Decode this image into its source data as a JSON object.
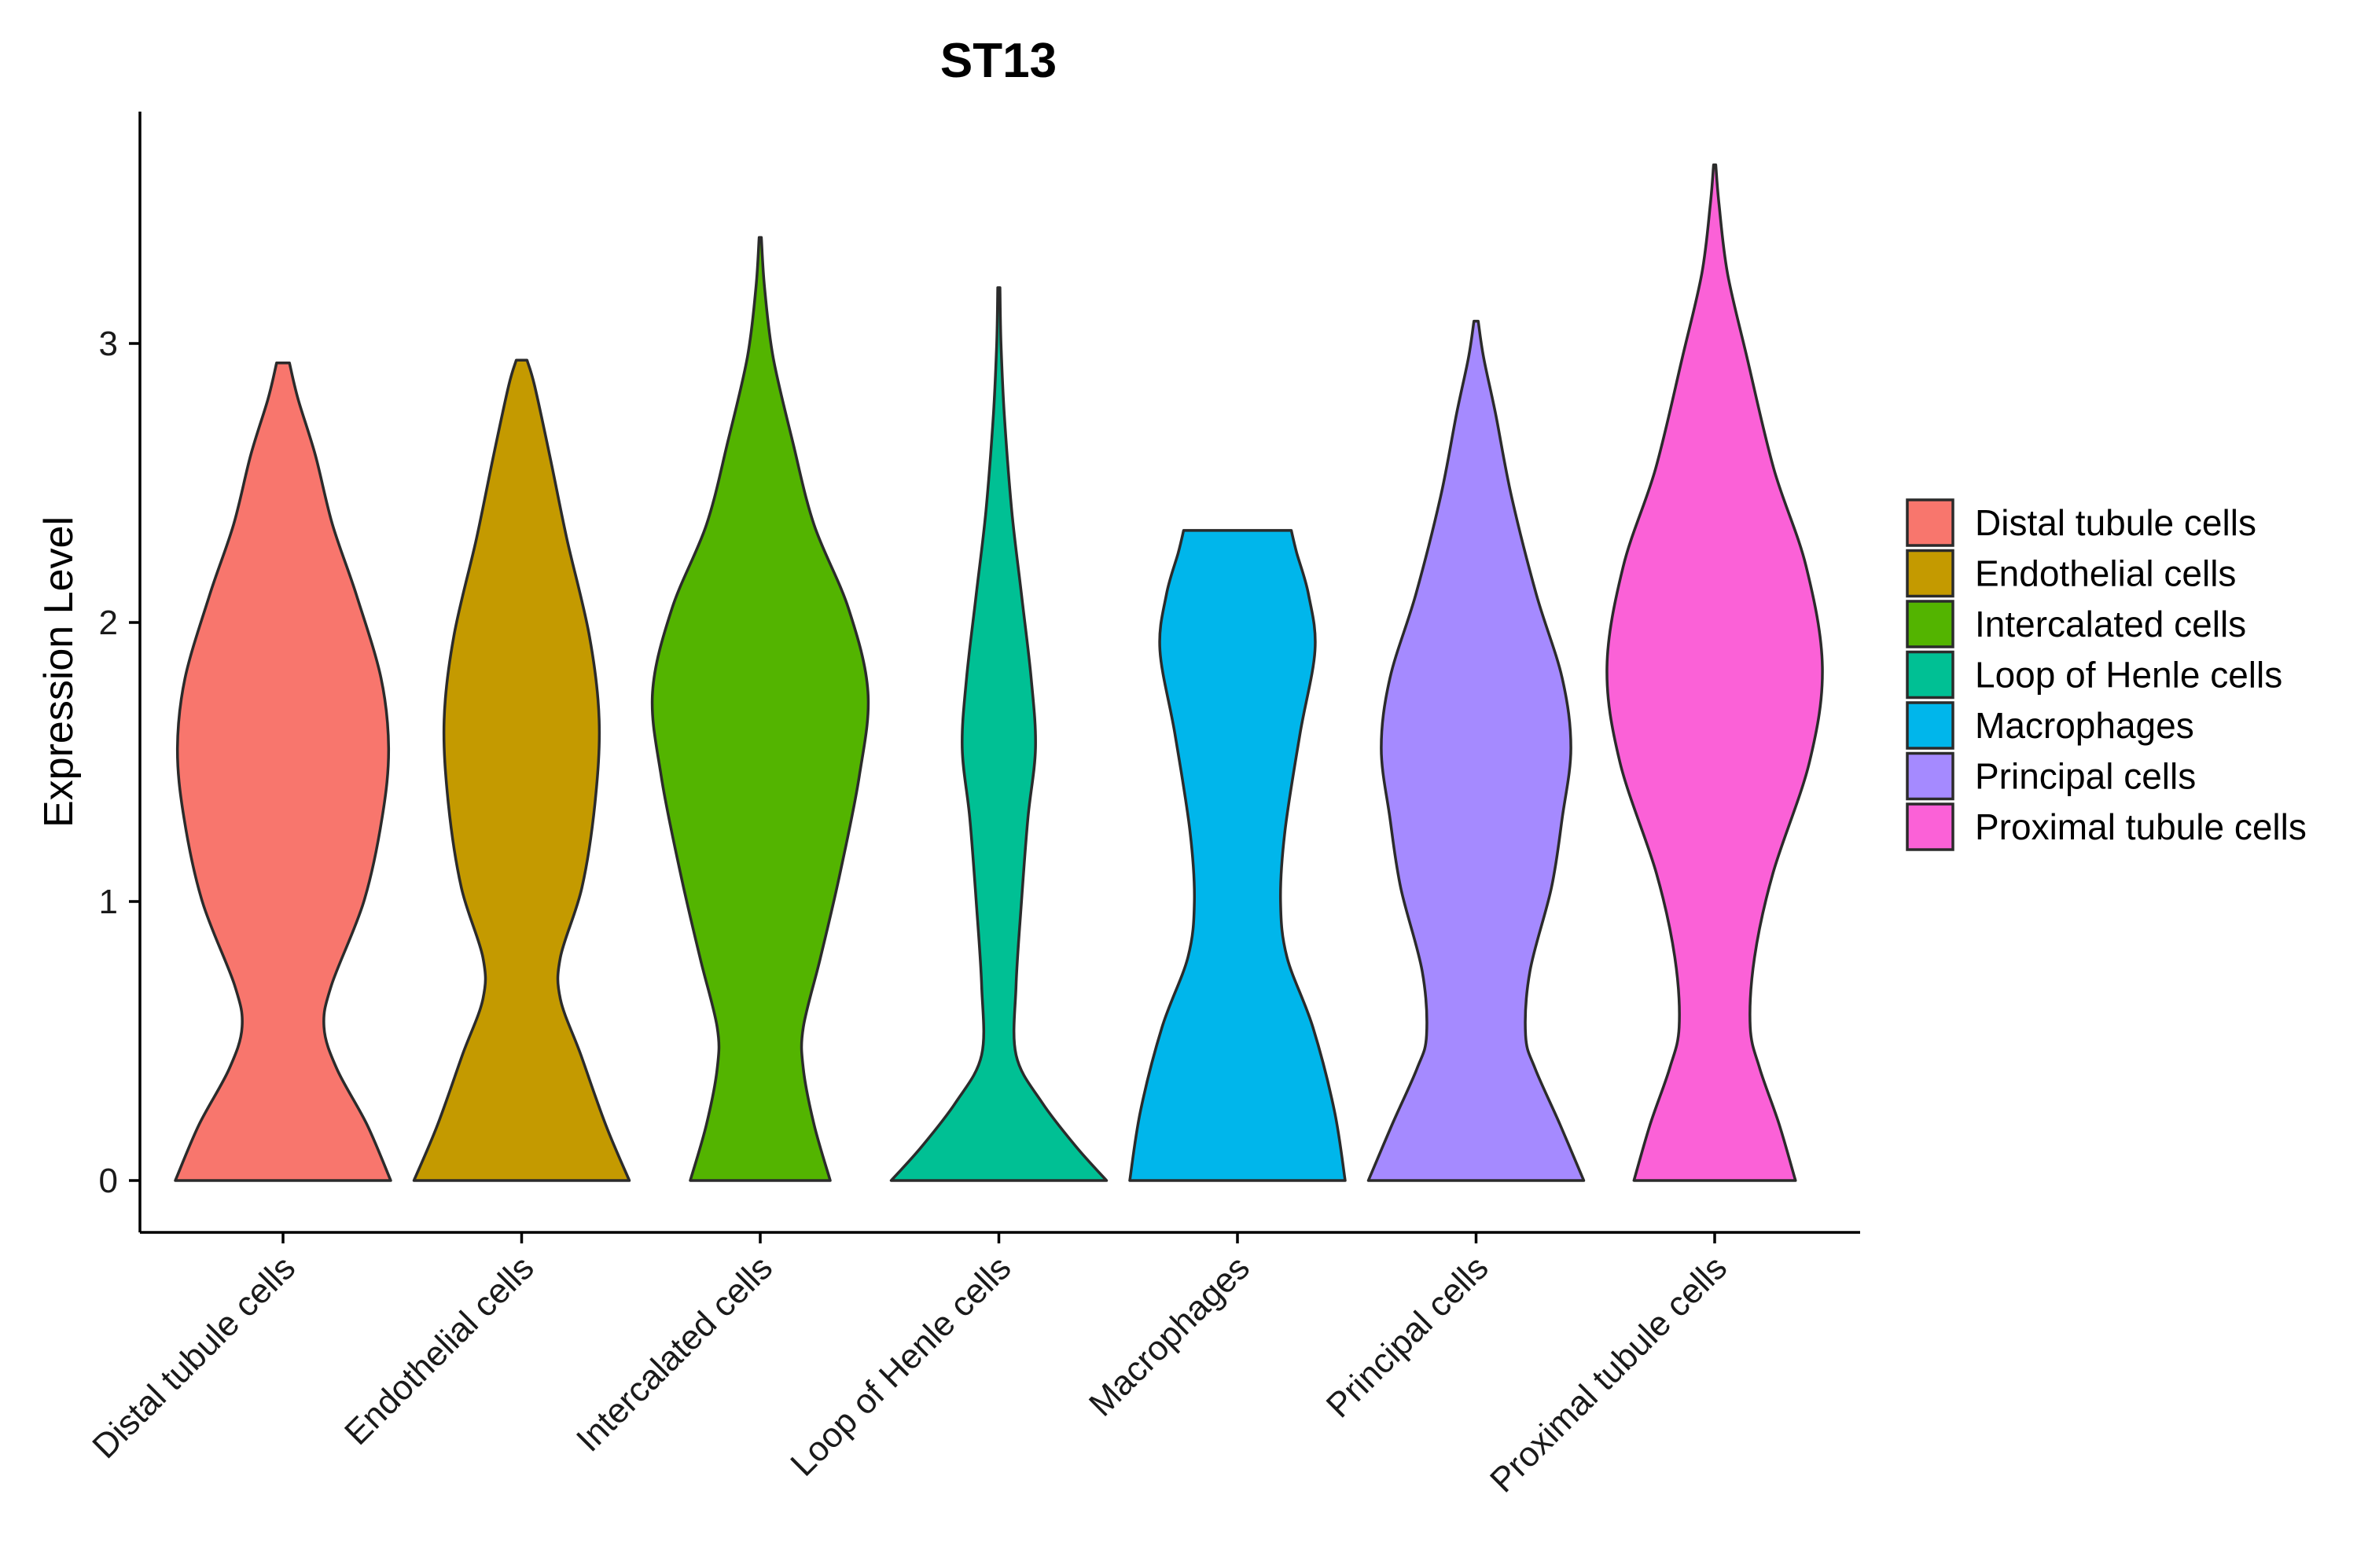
{
  "chart_data": {
    "type": "violin",
    "title": "ST13",
    "xlabel": "",
    "ylabel": "Expression Level",
    "ylim": [
      -0.18,
      3.82
    ],
    "yticks": [
      0,
      1,
      2,
      3
    ],
    "legend_position": "right",
    "categories": [
      "Distal tubule cells",
      "Endothelial cells",
      "Intercalated cells",
      "Loop of Henle cells",
      "Macrophages",
      "Principal cells",
      "Proximal tubule cells"
    ],
    "colors": [
      "#F8766D",
      "#C49A00",
      "#53B400",
      "#00C094",
      "#00B6EB",
      "#A58AFF",
      "#FB61D7"
    ],
    "series": [
      {
        "name": "Distal tubule cells",
        "max": 2.93,
        "density": [
          [
            0,
            1.0
          ],
          [
            0.2,
            0.78
          ],
          [
            0.4,
            0.5
          ],
          [
            0.55,
            0.38
          ],
          [
            0.7,
            0.45
          ],
          [
            1.0,
            0.75
          ],
          [
            1.3,
            0.92
          ],
          [
            1.55,
            0.98
          ],
          [
            1.8,
            0.91
          ],
          [
            2.1,
            0.68
          ],
          [
            2.35,
            0.46
          ],
          [
            2.6,
            0.3
          ],
          [
            2.8,
            0.14
          ],
          [
            2.93,
            0.06
          ]
        ]
      },
      {
        "name": "Endothelial cells",
        "max": 2.94,
        "density": [
          [
            0,
            1.0
          ],
          [
            0.2,
            0.78
          ],
          [
            0.45,
            0.55
          ],
          [
            0.65,
            0.36
          ],
          [
            0.8,
            0.36
          ],
          [
            1.05,
            0.56
          ],
          [
            1.35,
            0.68
          ],
          [
            1.65,
            0.72
          ],
          [
            1.95,
            0.63
          ],
          [
            2.3,
            0.42
          ],
          [
            2.6,
            0.26
          ],
          [
            2.85,
            0.12
          ],
          [
            2.94,
            0.05
          ]
        ]
      },
      {
        "name": "Intercalated cells",
        "max": 3.38,
        "density": [
          [
            0,
            0.65
          ],
          [
            0.2,
            0.5
          ],
          [
            0.4,
            0.4
          ],
          [
            0.55,
            0.4
          ],
          [
            0.8,
            0.56
          ],
          [
            1.1,
            0.74
          ],
          [
            1.45,
            0.92
          ],
          [
            1.75,
            1.0
          ],
          [
            2.05,
            0.82
          ],
          [
            2.35,
            0.5
          ],
          [
            2.65,
            0.3
          ],
          [
            2.95,
            0.12
          ],
          [
            3.2,
            0.04
          ],
          [
            3.38,
            0.01
          ]
        ]
      },
      {
        "name": "Loop of Henle cells",
        "max": 3.2,
        "density": [
          [
            0,
            1.0
          ],
          [
            0.12,
            0.72
          ],
          [
            0.28,
            0.4
          ],
          [
            0.45,
            0.16
          ],
          [
            0.7,
            0.16
          ],
          [
            1.0,
            0.21
          ],
          [
            1.3,
            0.27
          ],
          [
            1.55,
            0.34
          ],
          [
            1.8,
            0.3
          ],
          [
            2.1,
            0.21
          ],
          [
            2.4,
            0.12
          ],
          [
            2.75,
            0.05
          ],
          [
            3.0,
            0.02
          ],
          [
            3.2,
            0.01
          ]
        ]
      },
      {
        "name": "Macrophages",
        "max": 2.33,
        "density": [
          [
            0,
            1.0
          ],
          [
            0.25,
            0.9
          ],
          [
            0.55,
            0.7
          ],
          [
            0.8,
            0.46
          ],
          [
            1.0,
            0.4
          ],
          [
            1.25,
            0.44
          ],
          [
            1.6,
            0.58
          ],
          [
            1.9,
            0.72
          ],
          [
            2.1,
            0.66
          ],
          [
            2.25,
            0.55
          ],
          [
            2.33,
            0.5
          ]
        ]
      },
      {
        "name": "Principal cells",
        "max": 3.08,
        "density": [
          [
            0,
            1.0
          ],
          [
            0.2,
            0.78
          ],
          [
            0.4,
            0.55
          ],
          [
            0.52,
            0.46
          ],
          [
            0.75,
            0.5
          ],
          [
            1.05,
            0.7
          ],
          [
            1.3,
            0.8
          ],
          [
            1.55,
            0.88
          ],
          [
            1.8,
            0.8
          ],
          [
            2.1,
            0.56
          ],
          [
            2.45,
            0.33
          ],
          [
            2.75,
            0.18
          ],
          [
            2.95,
            0.07
          ],
          [
            3.08,
            0.02
          ]
        ]
      },
      {
        "name": "Proximal tubule cells",
        "max": 3.64,
        "density": [
          [
            0,
            0.75
          ],
          [
            0.2,
            0.6
          ],
          [
            0.4,
            0.42
          ],
          [
            0.55,
            0.33
          ],
          [
            0.8,
            0.37
          ],
          [
            1.1,
            0.54
          ],
          [
            1.5,
            0.88
          ],
          [
            1.84,
            1.0
          ],
          [
            2.2,
            0.85
          ],
          [
            2.55,
            0.55
          ],
          [
            2.95,
            0.3
          ],
          [
            3.25,
            0.12
          ],
          [
            3.5,
            0.04
          ],
          [
            3.64,
            0.01
          ]
        ]
      }
    ]
  }
}
